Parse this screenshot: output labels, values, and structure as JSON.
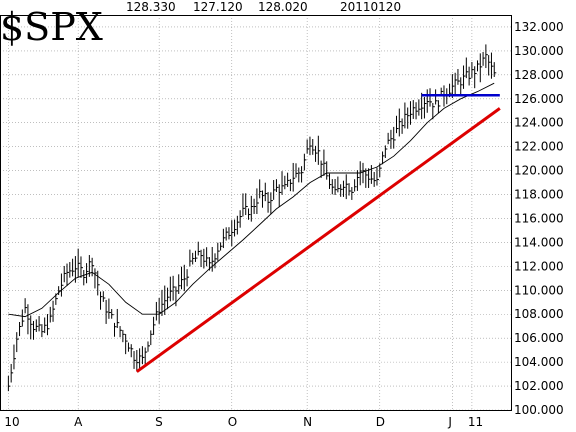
{
  "header": {
    "symbol": "$SPX",
    "high": "128.330",
    "low": "127.120",
    "close": "128.020",
    "date": "20110120"
  },
  "chart_data": {
    "type": "bar",
    "subtype": "ohlc-price-bars",
    "title": "$SPX",
    "ylim": [
      100,
      133
    ],
    "y_axis_side": "right",
    "y_ticks": [
      100,
      102,
      104,
      106,
      108,
      110,
      112,
      114,
      116,
      118,
      120,
      122,
      124,
      126,
      128,
      130,
      132
    ],
    "y_tick_labels": [
      "100.000",
      "102.000",
      "104.000",
      "106.000",
      "108.000",
      "110.000",
      "112.000",
      "114.000",
      "116.000",
      "118.000",
      "120.000",
      "122.000",
      "124.000",
      "126.000",
      "128.000",
      "130.000",
      "132.000"
    ],
    "x_month_labels": [
      {
        "label": "10",
        "day": 0
      },
      {
        "label": "A",
        "day": 25
      },
      {
        "label": "S",
        "day": 54
      },
      {
        "label": "O",
        "day": 80
      },
      {
        "label": "N",
        "day": 107
      },
      {
        "label": "D",
        "day": 133
      },
      {
        "label": "J",
        "day": 159
      },
      {
        "label": "11",
        "day": 166
      }
    ],
    "grid": true,
    "colors": {
      "bars": "#000000",
      "moving_average": "#000000",
      "support_line": "#dd0000",
      "resistance_line": "#0000cc",
      "grid": "#999999"
    },
    "support_trendline": {
      "from": {
        "day": 46,
        "price": 103.2
      },
      "to": {
        "day": 176,
        "price": 125.2
      }
    },
    "resistance_line": {
      "from": {
        "day": 148,
        "price": 126.3
      },
      "to": {
        "day": 176,
        "price": 126.3
      }
    },
    "close_path": [
      [
        0,
        102.0
      ],
      [
        3,
        106.0
      ],
      [
        6,
        108.5
      ],
      [
        9,
        107.0
      ],
      [
        12,
        106.5
      ],
      [
        15,
        107.5
      ],
      [
        18,
        110.0
      ],
      [
        21,
        111.5
      ],
      [
        24,
        112.0
      ],
      [
        27,
        111.5
      ],
      [
        30,
        112.5
      ],
      [
        33,
        109.5
      ],
      [
        36,
        108.0
      ],
      [
        39,
        107.0
      ],
      [
        42,
        106.0
      ],
      [
        45,
        104.5
      ],
      [
        48,
        104.2
      ],
      [
        51,
        106.5
      ],
      [
        54,
        108.5
      ],
      [
        57,
        109.5
      ],
      [
        60,
        110.0
      ],
      [
        63,
        111.0
      ],
      [
        66,
        112.5
      ],
      [
        69,
        113.0
      ],
      [
        72,
        112.0
      ],
      [
        75,
        113.5
      ],
      [
        78,
        114.5
      ],
      [
        81,
        115.5
      ],
      [
        84,
        116.5
      ],
      [
        87,
        116.8
      ],
      [
        90,
        118.0
      ],
      [
        93,
        117.5
      ],
      [
        96,
        118.5
      ],
      [
        99,
        118.5
      ],
      [
        102,
        119.5
      ],
      [
        105,
        120.0
      ],
      [
        108,
        122.5
      ],
      [
        111,
        121.5
      ],
      [
        114,
        119.5
      ],
      [
        117,
        118.0
      ],
      [
        120,
        119.0
      ],
      [
        123,
        118.5
      ],
      [
        126,
        120.0
      ],
      [
        129,
        119.5
      ],
      [
        132,
        119.0
      ],
      [
        135,
        122.0
      ],
      [
        138,
        123.0
      ],
      [
        141,
        124.0
      ],
      [
        144,
        125.0
      ],
      [
        147,
        125.5
      ],
      [
        150,
        126.0
      ],
      [
        153,
        125.5
      ],
      [
        156,
        126.5
      ],
      [
        159,
        127.0
      ],
      [
        162,
        127.5
      ],
      [
        165,
        128.0
      ],
      [
        168,
        128.5
      ],
      [
        171,
        129.5
      ],
      [
        174,
        128.0
      ]
    ],
    "moving_average": [
      [
        0,
        108.0
      ],
      [
        6,
        107.8
      ],
      [
        12,
        108.5
      ],
      [
        18,
        109.8
      ],
      [
        24,
        111.0
      ],
      [
        30,
        111.5
      ],
      [
        36,
        110.5
      ],
      [
        42,
        109.0
      ],
      [
        48,
        108.0
      ],
      [
        54,
        108.0
      ],
      [
        60,
        109.0
      ],
      [
        66,
        110.5
      ],
      [
        72,
        111.8
      ],
      [
        78,
        113.0
      ],
      [
        84,
        114.2
      ],
      [
        90,
        115.5
      ],
      [
        96,
        116.8
      ],
      [
        102,
        117.8
      ],
      [
        108,
        119.0
      ],
      [
        114,
        119.8
      ],
      [
        120,
        119.8
      ],
      [
        126,
        119.8
      ],
      [
        132,
        120.3
      ],
      [
        138,
        121.2
      ],
      [
        144,
        122.5
      ],
      [
        150,
        124.0
      ],
      [
        156,
        125.2
      ],
      [
        162,
        126.0
      ],
      [
        168,
        126.6
      ],
      [
        174,
        127.3
      ]
    ]
  }
}
